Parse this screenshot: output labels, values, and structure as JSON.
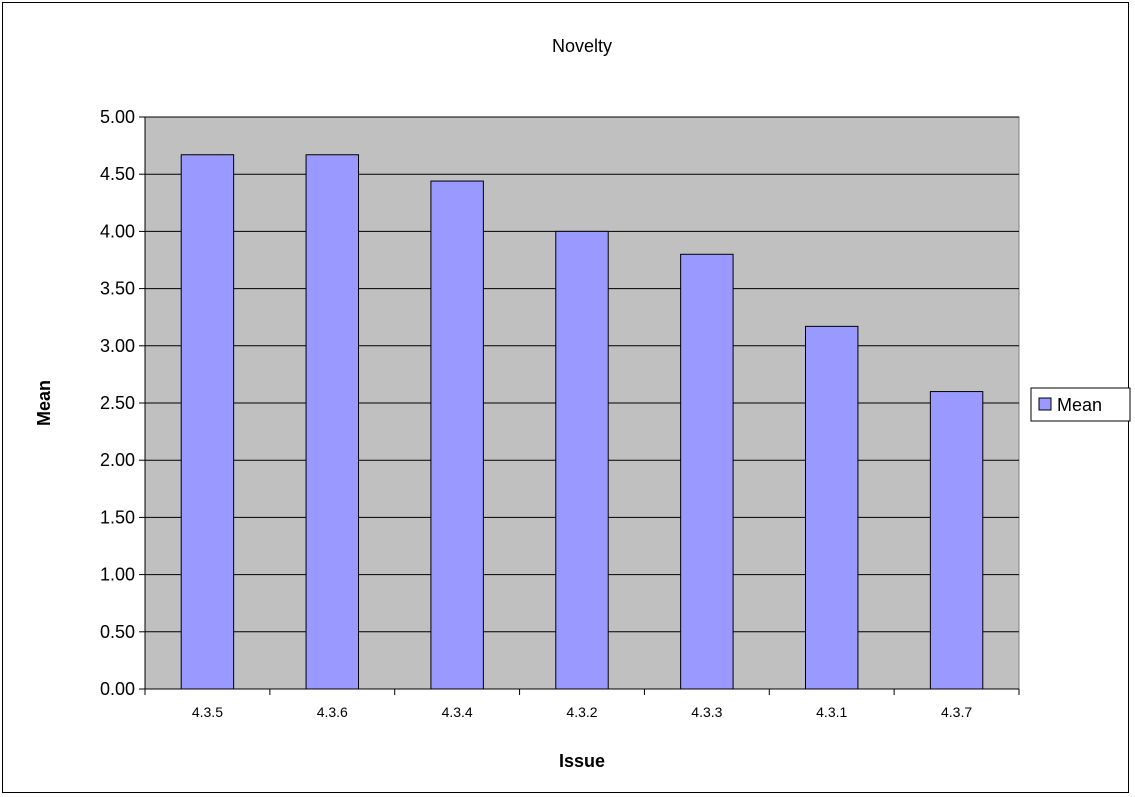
{
  "chart_data": {
    "type": "bar",
    "title": "Novelty",
    "xlabel": "Issue",
    "ylabel": "Mean",
    "categories": [
      "4.3.5",
      "4.3.6",
      "4.3.4",
      "4.3.2",
      "4.3.3",
      "4.3.1",
      "4.3.7"
    ],
    "series": [
      {
        "name": "Mean",
        "values": [
          4.67,
          4.67,
          4.44,
          4.0,
          3.8,
          3.17,
          2.6
        ]
      }
    ],
    "ylim": [
      0,
      5
    ],
    "yticks": [
      "0.00",
      "0.50",
      "1.00",
      "1.50",
      "2.00",
      "2.50",
      "3.00",
      "3.50",
      "4.00",
      "4.50",
      "5.00"
    ],
    "grid": true,
    "legend_position": "right",
    "colors": {
      "bar_fill": "#9999ff",
      "bar_stroke": "#000000",
      "plot_background": "#c0c0c0",
      "gridline": "#000000"
    }
  }
}
